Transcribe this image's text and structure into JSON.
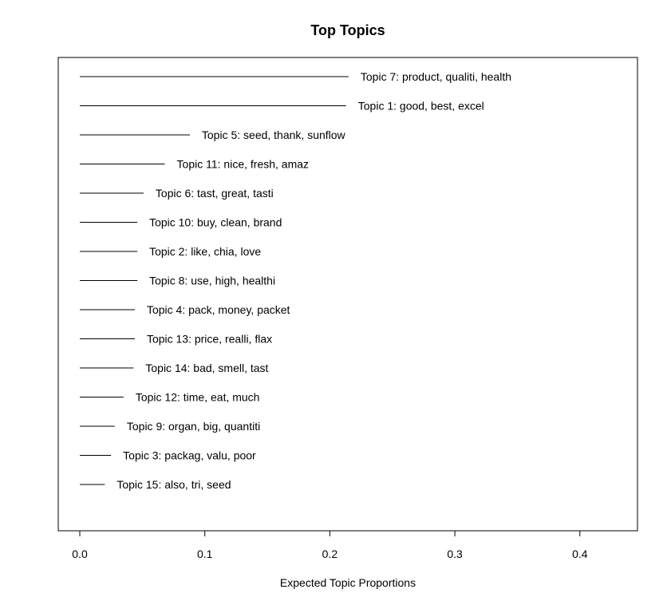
{
  "chart_data": {
    "type": "bar",
    "title": "Top Topics",
    "xlabel": "Expected Topic Proportions",
    "ylabel": "",
    "orientation": "horizontal",
    "xlim": [
      0.0,
      0.44
    ],
    "xticks": [
      "0.0",
      "0.1",
      "0.2",
      "0.3",
      "0.4"
    ],
    "grid": false,
    "legend": "none",
    "categories": [
      "Topic 7: product, qualiti, health",
      "Topic 1: good, best, excel",
      "Topic 5: seed, thank, sunflow",
      "Topic 11: nice, fresh, amaz",
      "Topic 6: tast, great, tasti",
      "Topic 10: buy, clean, brand",
      "Topic 2: like, chia, love",
      "Topic 8: use, high, healthi",
      "Topic 4: pack, money, packet",
      "Topic 13: price, realli, flax",
      "Topic 14: bad, smell, tast",
      "Topic 12: time, eat, much",
      "Topic 9: organ, big, quantiti",
      "Topic 3: packag, valu, poor",
      "Topic 15: also, tri, seed"
    ],
    "values": [
      0.215,
      0.213,
      0.088,
      0.068,
      0.051,
      0.046,
      0.046,
      0.046,
      0.044,
      0.044,
      0.043,
      0.035,
      0.028,
      0.025,
      0.02
    ]
  }
}
